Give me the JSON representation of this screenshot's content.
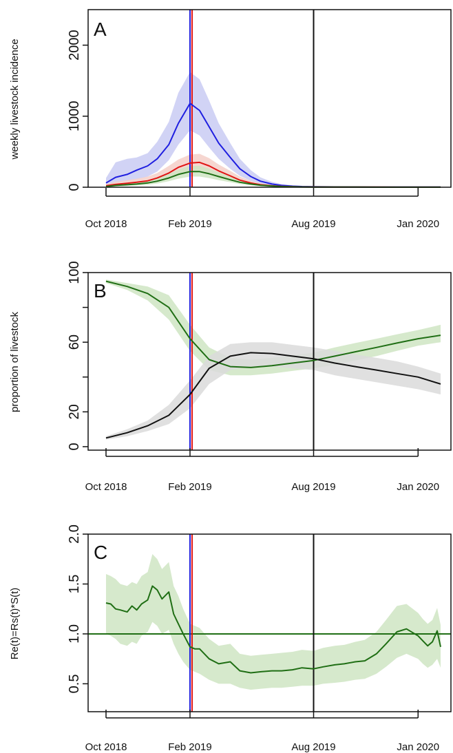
{
  "colors": {
    "blue": "#1f1fe0",
    "red": "#e01414",
    "green": "#1f6e14",
    "black": "#111111",
    "blue_band": "#c9cbf3",
    "red_band": "#f5cfc8",
    "green_band": "#cfe5c3",
    "grey_band": "#dadada"
  },
  "chart_data": [
    {
      "panel": "A",
      "type": "line",
      "ylabel": "weekly livestock incidence",
      "xlabel": "",
      "x_tick_labels": [
        "Oct 2018",
        "Feb 2019",
        "Aug 2019",
        "Jan 2020"
      ],
      "x_ticks": [
        "2018-10-01",
        "2019-02-01",
        "2019-08-01",
        "2020-01-01"
      ],
      "xlim": [
        "2018-10-01",
        "2020-02-03"
      ],
      "ylim": [
        0,
        2500
      ],
      "y_ticks": [
        0,
        1000,
        2000
      ],
      "y_tick_labels": [
        "0",
        "1000",
        "2000"
      ],
      "vlines": [
        {
          "date": "2019-02-01",
          "color": "blue"
        },
        {
          "date": "2019-02-04",
          "color": "red"
        },
        {
          "date": "2019-08-01",
          "color": "black"
        }
      ],
      "hlines": [],
      "series": [
        {
          "color": "blue",
          "x": [
            "2018-10-01",
            "2018-10-15",
            "2018-11-01",
            "2018-11-15",
            "2018-12-01",
            "2018-12-15",
            "2019-01-01",
            "2019-01-15",
            "2019-02-01",
            "2019-02-15",
            "2019-03-01",
            "2019-03-15",
            "2019-04-01",
            "2019-04-15",
            "2019-05-01",
            "2019-05-15",
            "2019-06-01",
            "2019-06-15",
            "2019-07-01",
            "2019-07-15",
            "2019-08-01",
            "2019-09-01",
            "2019-10-01",
            "2019-11-01",
            "2019-12-01",
            "2020-01-01",
            "2020-02-03"
          ],
          "y": [
            60,
            140,
            180,
            240,
            300,
            400,
            600,
            900,
            1180,
            1080,
            850,
            620,
            420,
            260,
            150,
            85,
            45,
            25,
            15,
            10,
            8,
            5,
            4,
            3,
            3,
            2,
            2
          ],
          "lower": [
            20,
            60,
            90,
            110,
            150,
            220,
            380,
            600,
            800,
            730,
            560,
            400,
            260,
            160,
            90,
            50,
            25,
            14,
            8,
            6,
            4,
            3,
            2,
            1,
            1,
            1,
            1
          ],
          "upper": [
            130,
            350,
            400,
            420,
            480,
            640,
            920,
            1330,
            1620,
            1520,
            1220,
            900,
            620,
            400,
            240,
            140,
            75,
            45,
            28,
            18,
            14,
            9,
            7,
            5,
            5,
            4,
            4
          ]
        },
        {
          "color": "red",
          "x": [
            "2018-10-01",
            "2018-10-15",
            "2018-11-01",
            "2018-11-15",
            "2018-12-01",
            "2018-12-15",
            "2019-01-01",
            "2019-01-15",
            "2019-02-01",
            "2019-02-15",
            "2019-03-01",
            "2019-03-15",
            "2019-04-01",
            "2019-04-15",
            "2019-05-01",
            "2019-05-15",
            "2019-06-01",
            "2019-06-15",
            "2019-07-01",
            "2019-07-15",
            "2019-08-01",
            "2019-09-01",
            "2019-10-01",
            "2019-11-01",
            "2019-12-01",
            "2020-01-01",
            "2020-02-03"
          ],
          "y": [
            20,
            40,
            55,
            70,
            90,
            130,
            200,
            280,
            340,
            350,
            300,
            230,
            160,
            100,
            60,
            35,
            20,
            12,
            8,
            5,
            4,
            3,
            2,
            2,
            1,
            1,
            1
          ],
          "lower": [
            8,
            20,
            30,
            40,
            55,
            80,
            130,
            190,
            230,
            240,
            200,
            150,
            100,
            62,
            36,
            20,
            11,
            6,
            4,
            3,
            2,
            1,
            1,
            1,
            0,
            0,
            0
          ],
          "upper": [
            45,
            80,
            100,
            120,
            150,
            200,
            300,
            390,
            460,
            470,
            410,
            320,
            230,
            150,
            90,
            55,
            32,
            20,
            13,
            9,
            7,
            5,
            4,
            3,
            2,
            2,
            2
          ]
        },
        {
          "color": "green",
          "x": [
            "2018-10-01",
            "2018-10-15",
            "2018-11-01",
            "2018-11-15",
            "2018-12-01",
            "2018-12-15",
            "2019-01-01",
            "2019-01-15",
            "2019-02-01",
            "2019-02-15",
            "2019-03-01",
            "2019-03-15",
            "2019-04-01",
            "2019-04-15",
            "2019-05-01",
            "2019-05-15",
            "2019-06-01",
            "2019-06-15",
            "2019-07-01",
            "2019-07-15",
            "2019-08-01",
            "2019-09-01",
            "2019-10-01",
            "2019-11-01",
            "2019-12-01",
            "2020-01-01",
            "2020-02-03"
          ],
          "y": [
            10,
            25,
            35,
            45,
            60,
            85,
            130,
            180,
            220,
            220,
            190,
            150,
            105,
            70,
            45,
            28,
            16,
            10,
            6,
            4,
            3,
            2,
            2,
            1,
            1,
            1,
            1
          ],
          "lower": [
            4,
            12,
            18,
            25,
            35,
            52,
            85,
            120,
            150,
            150,
            128,
            100,
            70,
            45,
            28,
            17,
            10,
            6,
            4,
            2,
            2,
            1,
            1,
            0,
            0,
            0,
            0
          ],
          "upper": [
            22,
            45,
            58,
            72,
            95,
            130,
            190,
            250,
            300,
            300,
            262,
            210,
            150,
            100,
            65,
            40,
            24,
            15,
            10,
            7,
            5,
            4,
            3,
            2,
            2,
            2,
            2
          ]
        }
      ]
    },
    {
      "panel": "B",
      "type": "line",
      "ylabel": "proportion of livestock",
      "xlabel": "",
      "x_tick_labels": [
        "Oct 2018",
        "Feb 2019",
        "Aug 2019",
        "Jan 2020"
      ],
      "x_ticks": [
        "2018-10-01",
        "2019-02-01",
        "2019-08-01",
        "2020-01-01"
      ],
      "xlim": [
        "2018-10-01",
        "2020-02-03"
      ],
      "ylim": [
        -2,
        100
      ],
      "y_ticks": [
        0,
        20,
        40,
        60,
        80,
        100
      ],
      "y_tick_labels": [
        "0",
        "20",
        "",
        "60",
        "",
        "100"
      ],
      "vlines": [
        {
          "date": "2019-02-01",
          "color": "blue"
        },
        {
          "date": "2019-02-04",
          "color": "red"
        },
        {
          "date": "2019-08-01",
          "color": "black"
        }
      ],
      "hlines": [],
      "series": [
        {
          "color": "green",
          "x": [
            "2018-10-01",
            "2018-11-01",
            "2018-12-01",
            "2019-01-01",
            "2019-02-01",
            "2019-03-01",
            "2019-04-01",
            "2019-05-01",
            "2019-06-01",
            "2019-07-01",
            "2019-08-01",
            "2019-09-01",
            "2019-10-01",
            "2019-11-01",
            "2019-12-01",
            "2020-01-01",
            "2020-02-03"
          ],
          "y": [
            95,
            92,
            88,
            80,
            62,
            50,
            46,
            45.5,
            46.5,
            48,
            49.5,
            52,
            54.5,
            57,
            59.5,
            62,
            64
          ],
          "lower": [
            94,
            90,
            84,
            73,
            55,
            44,
            41,
            41,
            42,
            43.5,
            45,
            47,
            49.5,
            52,
            55,
            58,
            60
          ],
          "upper": [
            96,
            94,
            92,
            87,
            70,
            57,
            51,
            50,
            51,
            52.5,
            54,
            57,
            59.5,
            62,
            64.5,
            67,
            70
          ]
        },
        {
          "color": "black",
          "x": [
            "2018-10-01",
            "2018-11-01",
            "2018-12-01",
            "2019-01-01",
            "2019-02-01",
            "2019-03-01",
            "2019-04-01",
            "2019-05-01",
            "2019-06-01",
            "2019-07-01",
            "2019-08-01",
            "2019-09-01",
            "2019-10-01",
            "2019-11-01",
            "2019-12-01",
            "2020-01-01",
            "2020-02-03"
          ],
          "y": [
            5,
            8,
            12,
            18,
            30,
            45,
            52,
            54,
            53.5,
            52,
            50.5,
            48,
            46,
            44,
            42,
            40,
            36
          ],
          "lower": [
            4,
            6,
            9,
            13,
            22,
            36,
            44,
            46,
            46,
            45,
            44,
            41,
            39,
            37,
            35,
            33,
            30
          ],
          "upper": [
            6,
            10,
            15,
            24,
            38,
            52,
            59,
            60,
            60,
            58.5,
            57,
            55,
            53,
            51,
            49,
            46,
            42
          ]
        }
      ]
    },
    {
      "panel": "C",
      "type": "line",
      "ylabel": "Re(t)=Rs(t)*S(t)",
      "xlabel": "",
      "x_tick_labels": [
        "Oct 2018",
        "Feb 2019",
        "Aug 2019",
        "Jan 2020"
      ],
      "x_ticks": [
        "2018-10-01",
        "2019-02-01",
        "2019-08-01",
        "2020-01-01"
      ],
      "xlim": [
        "2018-10-01",
        "2020-02-03"
      ],
      "ylim": [
        0.22,
        2.0
      ],
      "y_ticks": [
        0.5,
        1.0,
        1.5,
        2.0
      ],
      "y_tick_labels": [
        "0.5",
        "1.0",
        "1.5",
        "2.0"
      ],
      "vlines": [
        {
          "date": "2019-02-01",
          "color": "blue"
        },
        {
          "date": "2019-02-04",
          "color": "red"
        },
        {
          "date": "2019-08-01",
          "color": "black"
        }
      ],
      "hlines": [
        {
          "y": 1.0,
          "color": "green"
        }
      ],
      "series": [
        {
          "color": "green",
          "x": [
            "2018-10-01",
            "2018-10-08",
            "2018-10-15",
            "2018-10-22",
            "2018-11-01",
            "2018-11-08",
            "2018-11-15",
            "2018-11-22",
            "2018-12-01",
            "2018-12-08",
            "2018-12-15",
            "2018-12-22",
            "2019-01-01",
            "2019-01-08",
            "2019-01-15",
            "2019-01-22",
            "2019-02-01",
            "2019-02-08",
            "2019-02-15",
            "2019-03-01",
            "2019-03-15",
            "2019-04-01",
            "2019-04-15",
            "2019-05-01",
            "2019-05-15",
            "2019-06-01",
            "2019-06-15",
            "2019-07-01",
            "2019-07-15",
            "2019-08-01",
            "2019-08-15",
            "2019-09-01",
            "2019-09-15",
            "2019-10-01",
            "2019-10-15",
            "2019-11-01",
            "2019-11-15",
            "2019-12-01",
            "2019-12-15",
            "2020-01-01",
            "2020-01-08",
            "2020-01-15",
            "2020-01-22",
            "2020-01-29",
            "2020-02-03"
          ],
          "y": [
            1.31,
            1.3,
            1.25,
            1.24,
            1.22,
            1.28,
            1.24,
            1.3,
            1.34,
            1.48,
            1.44,
            1.35,
            1.42,
            1.2,
            1.1,
            1.0,
            0.87,
            0.85,
            0.85,
            0.75,
            0.7,
            0.72,
            0.63,
            0.61,
            0.62,
            0.63,
            0.63,
            0.64,
            0.66,
            0.65,
            0.67,
            0.69,
            0.7,
            0.72,
            0.73,
            0.8,
            0.9,
            1.02,
            1.05,
            0.98,
            0.93,
            0.88,
            0.92,
            1.03,
            0.87
          ],
          "lower": [
            1.0,
            0.98,
            0.95,
            0.9,
            0.88,
            0.92,
            0.9,
            0.98,
            1.02,
            1.12,
            1.08,
            1.0,
            1.04,
            0.9,
            0.8,
            0.72,
            0.64,
            0.62,
            0.6,
            0.54,
            0.5,
            0.5,
            0.46,
            0.44,
            0.45,
            0.46,
            0.46,
            0.47,
            0.48,
            0.48,
            0.5,
            0.51,
            0.52,
            0.54,
            0.55,
            0.6,
            0.67,
            0.76,
            0.8,
            0.75,
            0.7,
            0.66,
            0.69,
            0.75,
            0.66
          ],
          "upper": [
            1.6,
            1.58,
            1.55,
            1.5,
            1.48,
            1.52,
            1.5,
            1.58,
            1.62,
            1.8,
            1.75,
            1.65,
            1.72,
            1.48,
            1.38,
            1.25,
            1.1,
            1.08,
            1.06,
            0.95,
            0.88,
            0.9,
            0.8,
            0.78,
            0.79,
            0.8,
            0.81,
            0.82,
            0.84,
            0.83,
            0.86,
            0.88,
            0.89,
            0.92,
            0.94,
            1.02,
            1.14,
            1.28,
            1.3,
            1.21,
            1.15,
            1.1,
            1.14,
            1.26,
            1.09
          ]
        }
      ]
    }
  ]
}
